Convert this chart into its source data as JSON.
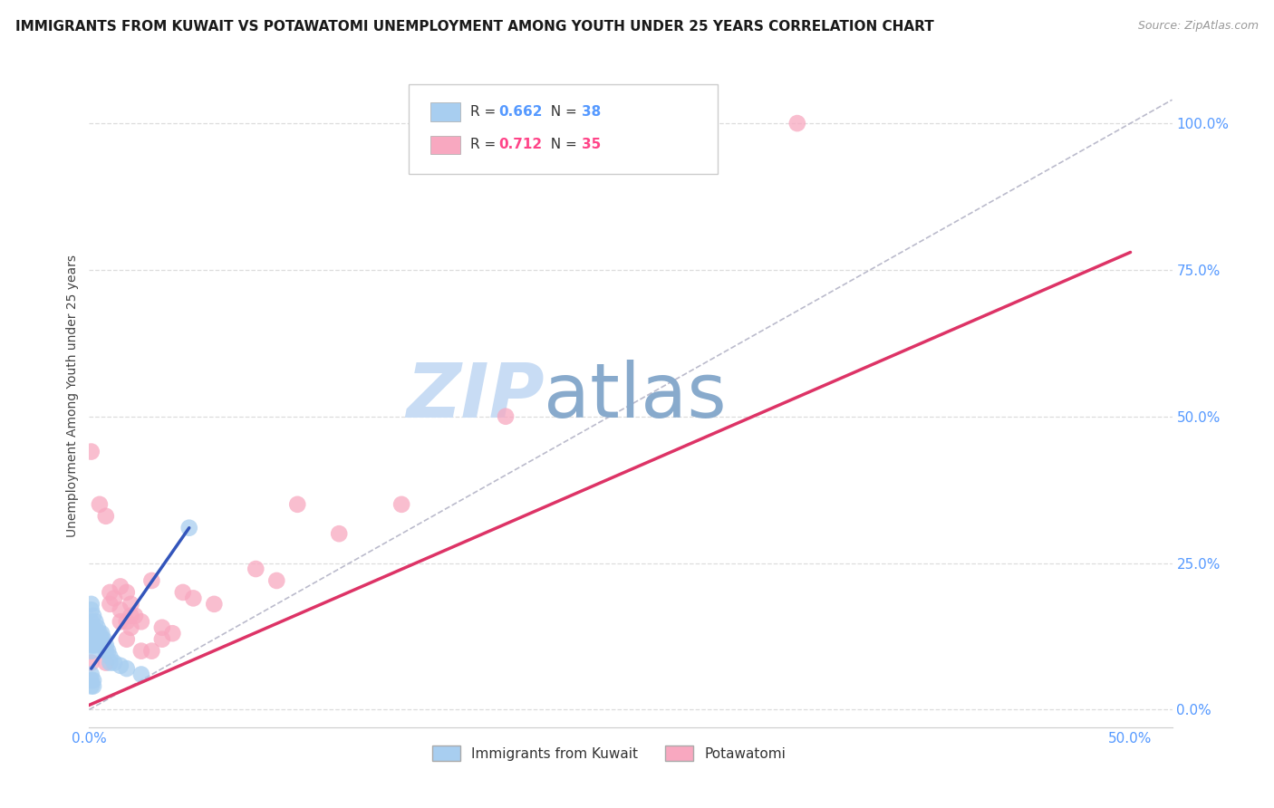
{
  "title": "IMMIGRANTS FROM KUWAIT VS POTAWATOMI UNEMPLOYMENT AMONG YOUTH UNDER 25 YEARS CORRELATION CHART",
  "source": "Source: ZipAtlas.com",
  "ylabel": "Unemployment Among Youth under 25 years",
  "xlim": [
    0.0,
    0.52
  ],
  "ylim": [
    -0.03,
    1.1
  ],
  "xticks": [
    0.0,
    0.1,
    0.2,
    0.3,
    0.4,
    0.5
  ],
  "yticks": [
    0.0,
    0.25,
    0.5,
    0.75,
    1.0
  ],
  "xtick_labels": [
    "0.0%",
    "",
    "",
    "",
    "",
    "50.0%"
  ],
  "ytick_labels": [
    "0.0%",
    "25.0%",
    "50.0%",
    "75.0%",
    "100.0%"
  ],
  "color_blue": "#A8CEF0",
  "color_pink": "#F8A8C0",
  "color_blue_line": "#3355BB",
  "color_pink_line": "#DD3366",
  "color_diag": "#BBBBCC",
  "color_tick": "#5599FF",
  "watermark_color_zip": "#C8DCF4",
  "watermark_color_atlas": "#88AACC",
  "background_color": "#FFFFFF",
  "grid_color": "#DDDDDD",
  "title_fontsize": 11,
  "axis_label_fontsize": 10,
  "tick_fontsize": 11,
  "legend_fontsize": 11,
  "watermark_fontsize": 60,
  "blue_points_x": [
    0.001,
    0.001,
    0.001,
    0.001,
    0.001,
    0.001,
    0.002,
    0.002,
    0.002,
    0.002,
    0.002,
    0.003,
    0.003,
    0.003,
    0.003,
    0.004,
    0.004,
    0.004,
    0.005,
    0.005,
    0.006,
    0.006,
    0.007,
    0.007,
    0.008,
    0.008,
    0.009,
    0.01,
    0.01,
    0.012,
    0.015,
    0.018,
    0.025,
    0.001,
    0.001,
    0.002,
    0.048,
    0.001
  ],
  "blue_points_y": [
    0.18,
    0.15,
    0.17,
    0.14,
    0.06,
    0.05,
    0.16,
    0.13,
    0.14,
    0.05,
    0.04,
    0.15,
    0.13,
    0.12,
    0.11,
    0.14,
    0.13,
    0.12,
    0.13,
    0.12,
    0.13,
    0.12,
    0.12,
    0.11,
    0.11,
    0.1,
    0.1,
    0.09,
    0.08,
    0.08,
    0.075,
    0.07,
    0.06,
    0.11,
    0.1,
    0.11,
    0.31,
    0.04
  ],
  "pink_points_x": [
    0.001,
    0.005,
    0.008,
    0.01,
    0.01,
    0.012,
    0.015,
    0.015,
    0.015,
    0.018,
    0.018,
    0.018,
    0.02,
    0.02,
    0.02,
    0.022,
    0.025,
    0.025,
    0.03,
    0.03,
    0.035,
    0.035,
    0.04,
    0.045,
    0.05,
    0.06,
    0.08,
    0.09,
    0.1,
    0.12,
    0.15,
    0.2,
    0.001,
    0.008,
    0.34
  ],
  "pink_points_y": [
    0.44,
    0.35,
    0.33,
    0.2,
    0.18,
    0.19,
    0.21,
    0.17,
    0.15,
    0.2,
    0.15,
    0.12,
    0.18,
    0.16,
    0.14,
    0.16,
    0.15,
    0.1,
    0.22,
    0.1,
    0.14,
    0.12,
    0.13,
    0.2,
    0.19,
    0.18,
    0.24,
    0.22,
    0.35,
    0.3,
    0.35,
    0.5,
    0.08,
    0.08,
    1.0
  ],
  "blue_line_x": [
    0.001,
    0.048
  ],
  "blue_line_y": [
    0.07,
    0.31
  ],
  "pink_line_x": [
    -0.005,
    0.5
  ],
  "pink_line_y": [
    0.0,
    0.78
  ],
  "diag_line_x": [
    0.0,
    0.52
  ],
  "diag_line_y": [
    0.0,
    1.04
  ]
}
